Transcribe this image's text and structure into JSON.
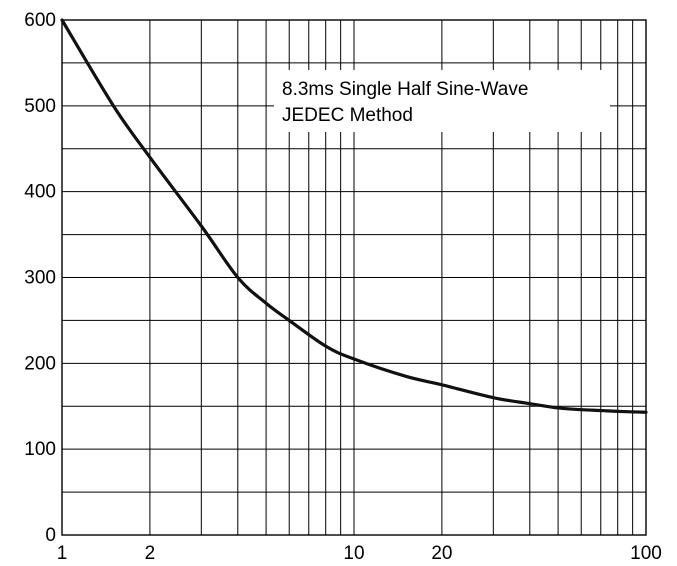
{
  "chart_data": {
    "type": "line",
    "title": "",
    "xlabel": "",
    "ylabel": "",
    "x_scale": "log",
    "xlim": [
      1,
      100
    ],
    "ylim": [
      0,
      600
    ],
    "grid": true,
    "x_ticks": [
      1,
      2,
      10,
      20,
      100
    ],
    "x_tick_labels": [
      "1",
      "2",
      "10",
      "20",
      "100"
    ],
    "y_ticks": [
      0,
      100,
      200,
      300,
      400,
      500,
      600
    ],
    "y_tick_labels": [
      "0",
      "100",
      "200",
      "300",
      "400",
      "500",
      "600"
    ],
    "annotation": [
      "8.3ms Single Half Sine-Wave",
      "JEDEC Method"
    ],
    "series": [
      {
        "x": [
          1,
          1.5,
          2,
          3,
          4,
          5,
          6,
          8,
          10,
          15,
          20,
          30,
          40,
          50,
          60,
          70,
          80,
          100
        ],
        "y": [
          600,
          500,
          440,
          360,
          300,
          270,
          250,
          220,
          205,
          185,
          175,
          160,
          153,
          148,
          146,
          145,
          144,
          143
        ]
      }
    ],
    "colors": {
      "line": "#111111",
      "grid": "#000000",
      "background": "#ffffff"
    }
  }
}
